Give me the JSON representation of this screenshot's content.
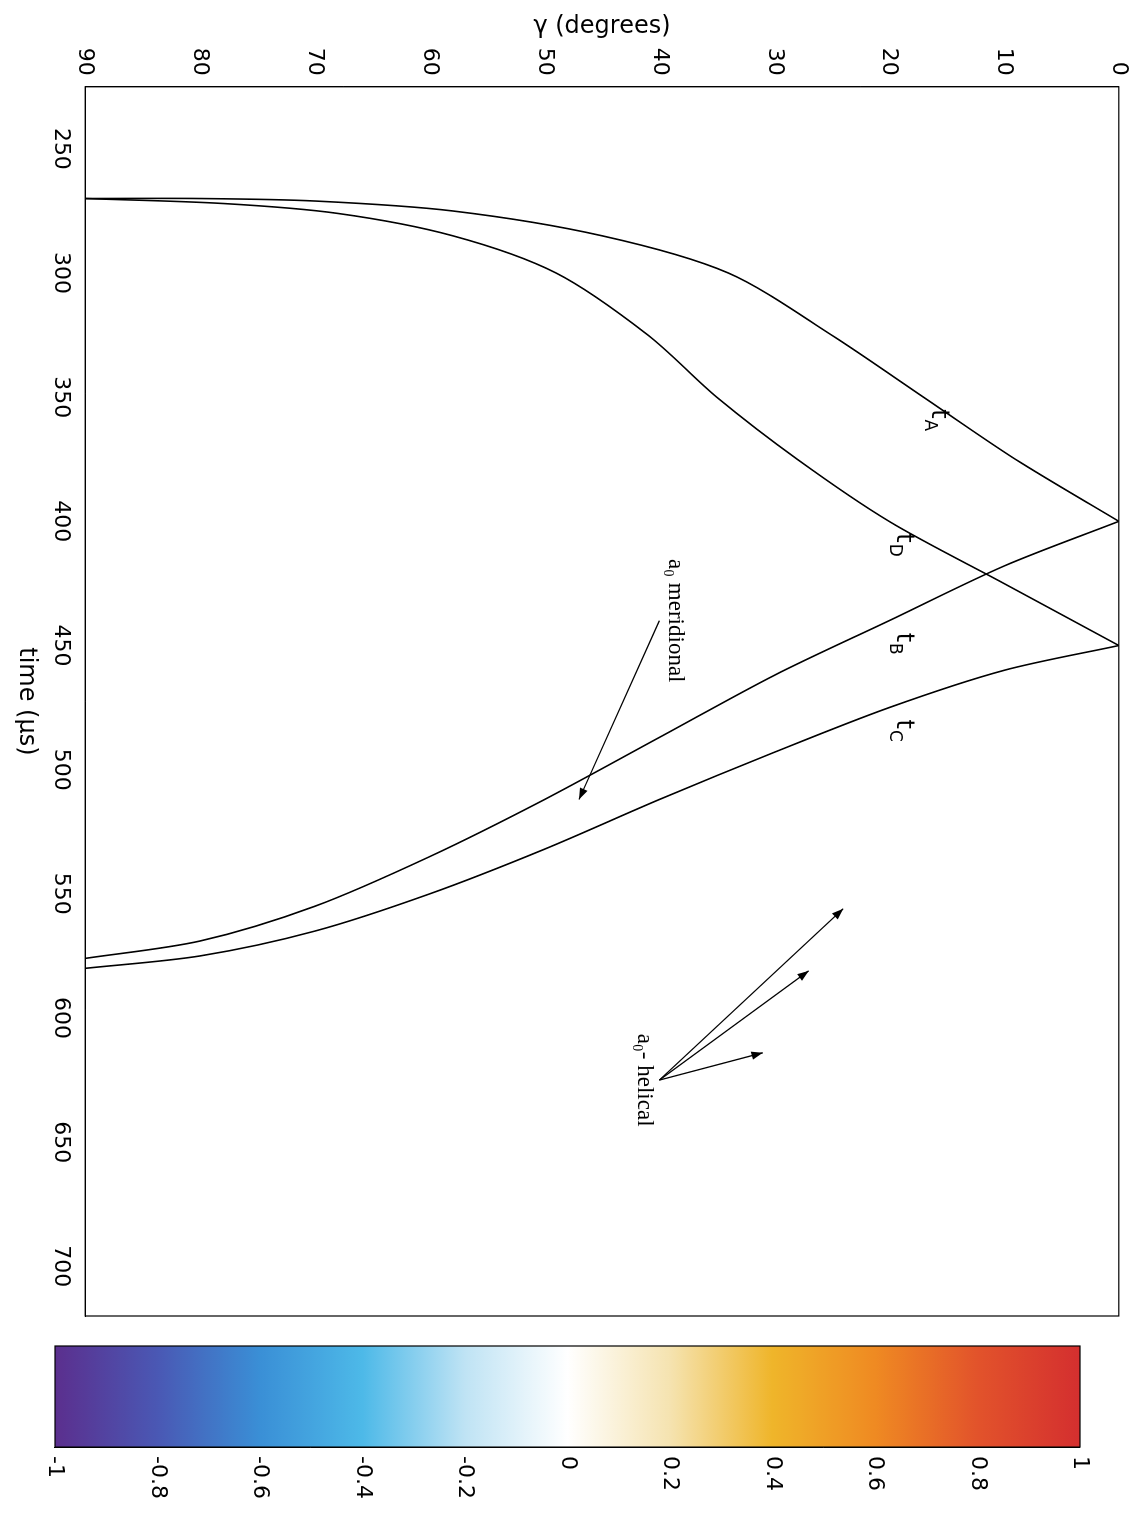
{
  "chart_data": {
    "type": "line",
    "x_label": "time (µs)",
    "y_label": "γ (degrees)",
    "xlim": [
      225,
      720
    ],
    "xticks": [
      250,
      300,
      350,
      400,
      450,
      500,
      550,
      600,
      650,
      700
    ],
    "ylim": [
      0,
      90
    ],
    "yticks": [
      0,
      10,
      20,
      30,
      40,
      50,
      60,
      70,
      80,
      90
    ],
    "grid": false,
    "series": [
      {
        "name": "tA",
        "color": "#000000",
        "x": [
          400,
          375,
          350,
          325,
          300,
          285,
          275,
          271,
          270,
          270
        ],
        "values": [
          0,
          9,
          17,
          25,
          34,
          45,
          58,
          70,
          80,
          90
        ]
      },
      {
        "name": "tD",
        "color": "#000000",
        "x": [
          450,
          425,
          400,
          375,
          350,
          325,
          300,
          285,
          276,
          272,
          270
        ],
        "values": [
          0,
          10,
          20,
          28,
          35,
          41,
          49,
          58,
          68,
          78,
          90
        ]
      },
      {
        "name": "tB",
        "color": "#000000",
        "x": [
          400,
          418,
          440,
          462,
          487,
          512,
          535,
          555,
          569,
          576
        ],
        "values": [
          0,
          10,
          20,
          30,
          40,
          50,
          60,
          70,
          80,
          90
        ]
      },
      {
        "name": "tC",
        "color": "#000000",
        "x": [
          450,
          460,
          475,
          493,
          512,
          532,
          550,
          565,
          575,
          580
        ],
        "values": [
          0,
          10,
          20,
          30,
          40,
          50,
          60,
          70,
          80,
          90
        ]
      }
    ],
    "annotations": [
      {
        "text": "a₀ meridional",
        "x": 440,
        "y": 40,
        "targets": [
          [
            512,
            47
          ]
        ]
      },
      {
        "text": "a₀- helical",
        "x": 625,
        "y": 40,
        "targets": [
          [
            556,
            24
          ],
          [
            581,
            27
          ],
          [
            614,
            31
          ]
        ]
      }
    ],
    "colorbar": {
      "range": [
        -1,
        1
      ],
      "ticks": [
        -1,
        -0.8,
        -0.6,
        -0.4,
        -0.2,
        0,
        0.2,
        0.4,
        0.6,
        0.8,
        1
      ]
    }
  }
}
